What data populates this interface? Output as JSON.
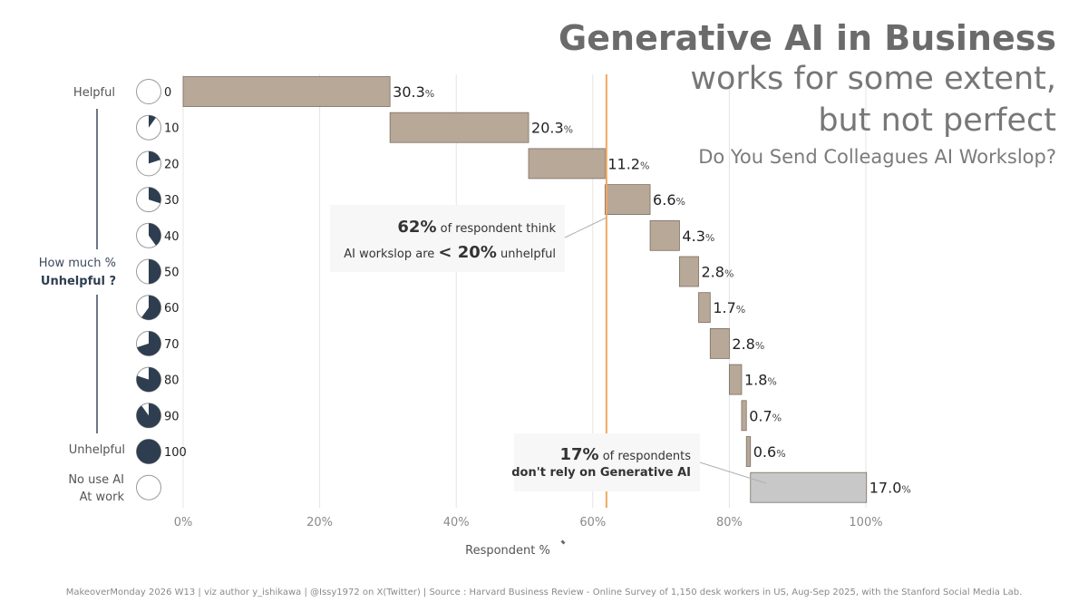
{
  "title": {
    "main": "Generative AI in Business",
    "line2": "works for some extent,",
    "line3": "but not perfect",
    "question": "Do You Send Colleagues AI Workslop?"
  },
  "side_labels": {
    "helpful": "Helpful",
    "how_much": "How much %",
    "unhelpful_q": "Unhelpful ?",
    "unhelpful": "Unhelpful",
    "no_use_1": "No use AI",
    "no_use_2": "At work"
  },
  "callouts": {
    "c1_big": "62%",
    "c1_rest": " of respondent think",
    "c1_pre": "AI workslop are ",
    "c1_big2": "< 20%",
    "c1_post": " unhelpful",
    "c2_big": "17%",
    "c2_rest": " of respondents",
    "c2_line2": "don't rely on Generative AI"
  },
  "footer": "MakeoverMonday 2026 W13 |  viz author y_ishikawa | @Issy1972 on X(Twitter) | Source : Harvard Business Review - Online Survey of 1,150 desk workers in US, Aug-Sep 2025, with the Stanford Social Media Lab.",
  "colors": {
    "bar": "#b8a898",
    "bar_nouse": "#c8c8c8",
    "pie_fill": "#2e3e50",
    "ref_line": "#f0a860",
    "grid": "#e4e4e4"
  },
  "chart_data": {
    "type": "bar",
    "orientation": "horizontal-waterfall",
    "xlabel": "Respondent %",
    "xlim": [
      0,
      100
    ],
    "xticks": [
      "0%",
      "20%",
      "40%",
      "60%",
      "80%",
      "100%"
    ],
    "reference_line_x": 62,
    "categories": [
      "0",
      "10",
      "20",
      "30",
      "40",
      "50",
      "60",
      "70",
      "80",
      "90",
      "100",
      ""
    ],
    "values": [
      30.3,
      20.3,
      11.2,
      6.6,
      4.3,
      2.8,
      1.7,
      2.8,
      1.8,
      0.7,
      0.6,
      17.0
    ],
    "value_labels": [
      "30.3",
      "20.3",
      "11.2",
      "6.6",
      "4.3",
      "2.8",
      "1.7",
      "2.8",
      "1.8",
      "0.7",
      "0.6",
      "17.0"
    ],
    "unit": "%"
  }
}
